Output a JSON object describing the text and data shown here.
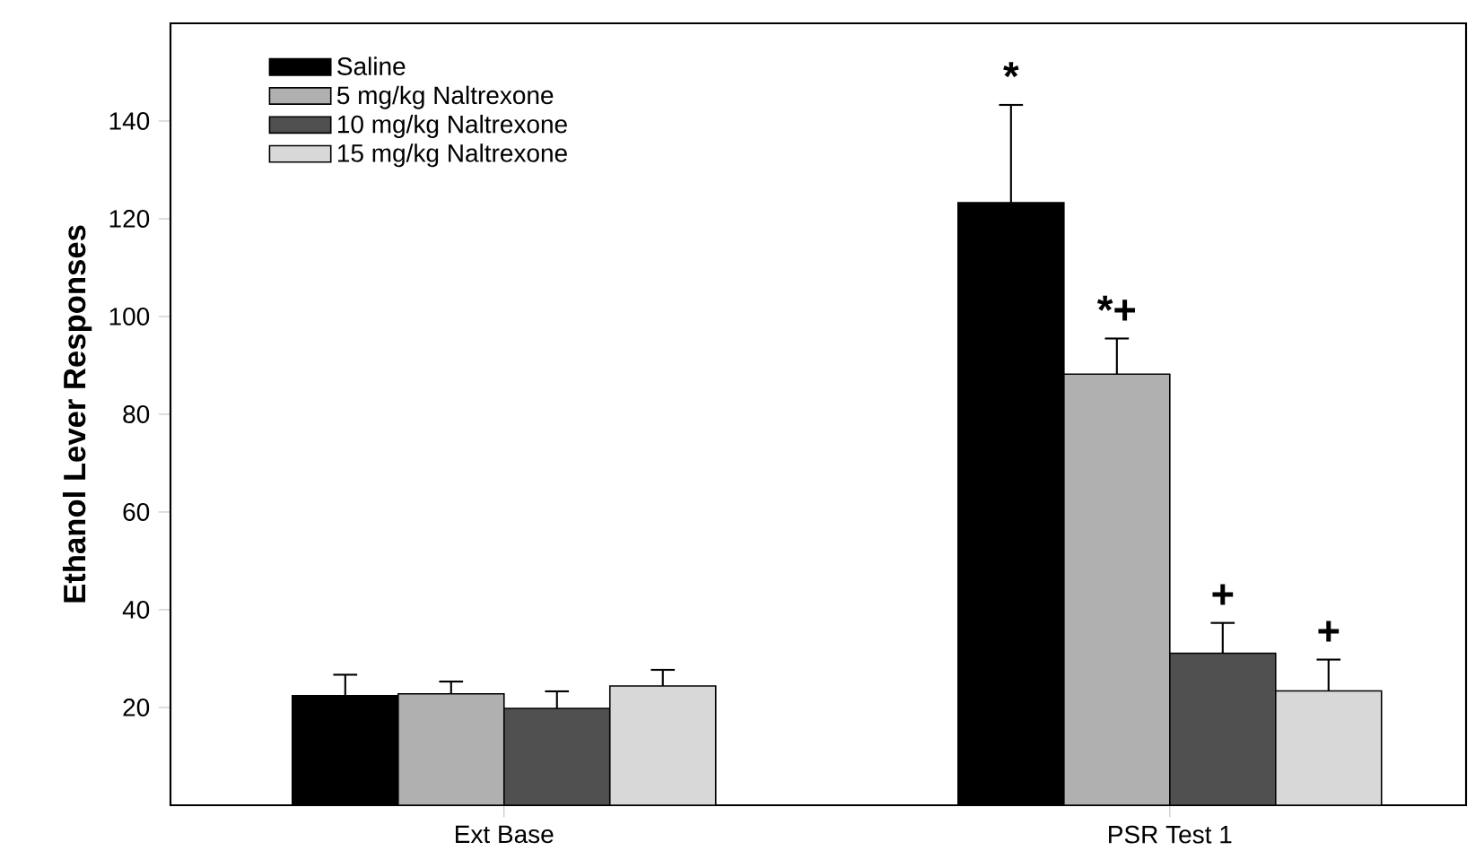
{
  "chart_data": {
    "type": "bar",
    "ylabel": "Ethanol Lever Responses",
    "categories": [
      "Ext Base",
      "PSR Test 1"
    ],
    "series": [
      {
        "name": "Saline",
        "color": "#000000",
        "values": [
          22.4,
          123.3
        ],
        "errors": [
          [
            22.4,
            26.7
          ],
          [
            123.3,
            143.3
          ]
        ]
      },
      {
        "name": "5 mg/kg Naltrexone",
        "color": "#b0b0b0",
        "values": [
          22.8,
          88.2
        ],
        "errors": [
          [
            22.8,
            25.3
          ],
          [
            88.2,
            95.5
          ]
        ]
      },
      {
        "name": "10 mg/kg Naltrexone",
        "color": "#505050",
        "values": [
          19.8,
          31.1
        ],
        "errors": [
          [
            19.8,
            23.3
          ],
          [
            31.1,
            37.3
          ]
        ]
      },
      {
        "name": "15 mg/kg Naltrexone",
        "color": "#d8d8d8",
        "values": [
          24.4,
          23.4
        ],
        "errors": [
          [
            24.4,
            27.7
          ],
          [
            23.4,
            29.8
          ]
        ]
      }
    ],
    "ylim": [
      0,
      160
    ],
    "yticks": [
      20,
      40,
      60,
      80,
      100,
      120,
      140
    ],
    "legend": "top left",
    "annotations": [
      "*",
      "*+",
      "+",
      "+"
    ]
  }
}
